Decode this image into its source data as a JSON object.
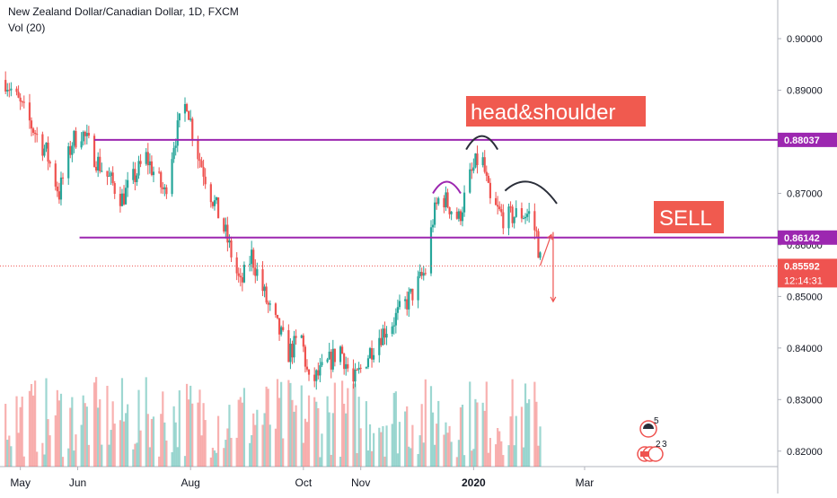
{
  "header": {
    "title": "New Zealand Dollar/Canadian Dollar, 1D, FXCM",
    "volume_label": "Vol (20)"
  },
  "annotations": {
    "pattern_label": "head&shoulder",
    "signal_label": "SELL",
    "small_numbers": [
      "5",
      "2",
      "3"
    ]
  },
  "colors": {
    "up": "#26a69a",
    "down": "#ef5350",
    "level_line": "#9c27b0",
    "label_box": "#f05a4f",
    "price_tag": "#ef5350"
  },
  "chart_data": {
    "type": "candlestick",
    "title": "New Zealand Dollar/Canadian Dollar, 1D, FXCM",
    "ylim": [
      0.817,
      0.9075
    ],
    "y_ticks": [
      "0.90000",
      "0.89000",
      "0.88000",
      "0.87000",
      "0.86000",
      "0.85000",
      "0.84000",
      "0.83000",
      "0.82000"
    ],
    "x_ticks": [
      "May",
      "Jun",
      "Aug",
      "Oct",
      "Nov",
      "2020",
      "Mar"
    ],
    "levels": [
      {
        "label": "0.88037",
        "value": 0.88037
      },
      {
        "label": "0.86142",
        "value": 0.86142
      }
    ],
    "last_price": {
      "label": "0.85592",
      "value": 0.85592,
      "countdown": "12:14:31"
    },
    "close_path": [
      [
        "2019-04-23",
        0.892
      ],
      [
        "2019-05-01",
        0.887
      ],
      [
        "2019-05-15",
        0.878
      ],
      [
        "2019-05-22",
        0.87
      ],
      [
        "2019-05-29",
        0.88
      ],
      [
        "2019-06-03",
        0.882
      ],
      [
        "2019-06-12",
        0.876
      ],
      [
        "2019-06-25",
        0.869
      ],
      [
        "2019-07-08",
        0.877
      ],
      [
        "2019-07-18",
        0.87
      ],
      [
        "2019-07-23",
        0.88
      ],
      [
        "2019-07-30",
        0.888
      ],
      [
        "2019-08-03",
        0.88
      ],
      [
        "2019-08-12",
        0.87
      ],
      [
        "2019-08-20",
        0.862
      ],
      [
        "2019-08-28",
        0.852
      ],
      [
        "2019-09-03",
        0.858
      ],
      [
        "2019-09-12",
        0.848
      ],
      [
        "2019-09-23",
        0.839
      ],
      [
        "2019-09-30",
        0.842
      ],
      [
        "2019-10-04",
        0.833
      ],
      [
        "2019-10-10",
        0.835
      ],
      [
        "2019-10-21",
        0.84
      ],
      [
        "2019-10-28",
        0.833
      ],
      [
        "2019-11-04",
        0.838
      ],
      [
        "2019-11-10",
        0.842
      ],
      [
        "2019-11-18",
        0.845
      ],
      [
        "2019-11-28",
        0.85
      ],
      [
        "2019-12-06",
        0.855
      ],
      [
        "2019-12-10",
        0.865
      ],
      [
        "2019-12-14",
        0.87
      ],
      [
        "2019-12-24",
        0.865
      ],
      [
        "2019-12-30",
        0.873
      ],
      [
        "2020-01-05",
        0.878
      ],
      [
        "2020-01-10",
        0.868
      ],
      [
        "2020-01-18",
        0.865
      ],
      [
        "2020-01-25",
        0.866
      ],
      [
        "2020-01-31",
        0.866
      ],
      [
        "2020-02-04",
        0.862
      ],
      [
        "2020-02-06",
        0.857
      ]
    ],
    "volume_range": [
      0.1,
      1.0
    ],
    "arrows": [
      {
        "from": [
          "2020-02-06",
          0.856
        ],
        "to": [
          "2020-02-12",
          0.862
        ]
      },
      {
        "from": [
          "2020-02-13",
          0.8625
        ],
        "to": [
          "2020-02-13",
          0.849
        ]
      }
    ],
    "arcs": [
      {
        "name": "left-shoulder",
        "from": [
          "2019-12-10",
          0.87
        ],
        "to": [
          "2019-12-25",
          0.87
        ]
      },
      {
        "name": "head",
        "from": [
          "2019-12-28",
          0.8785
        ],
        "to": [
          "2020-01-14",
          0.8785
        ]
      },
      {
        "name": "right-shoulder",
        "from": [
          "2020-01-18",
          0.8705
        ],
        "to": [
          "2020-02-15",
          0.868
        ]
      }
    ]
  }
}
